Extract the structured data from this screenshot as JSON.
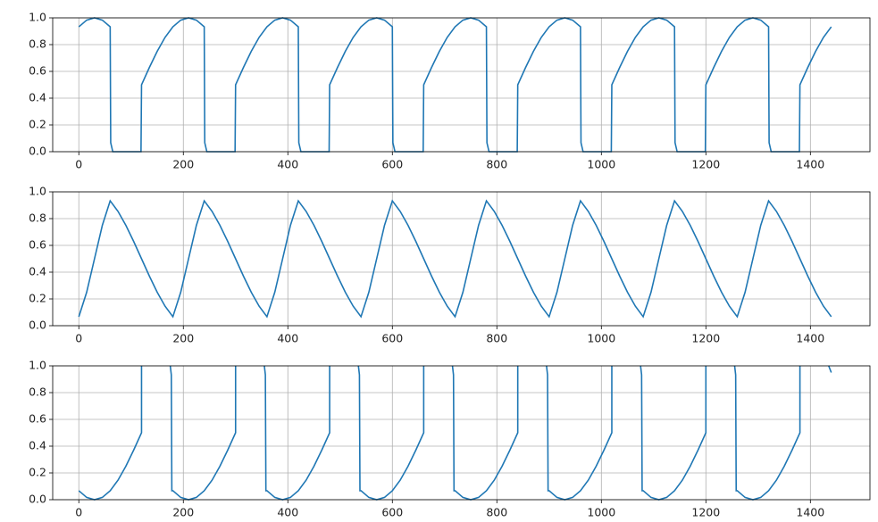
{
  "chart_data": [
    {
      "type": "line",
      "grid": true,
      "xlim": [
        -50,
        1514
      ],
      "ylim": [
        0,
        1
      ],
      "xticks": [
        0,
        200,
        400,
        600,
        800,
        1000,
        1200,
        1400
      ],
      "yticks": [
        {
          "value": 0,
          "label": "0.0"
        },
        {
          "value": 0.2,
          "label": "0.2"
        },
        {
          "value": 0.4,
          "label": "0.4"
        },
        {
          "value": 0.6,
          "label": "0.6"
        },
        {
          "value": 0.8,
          "label": "0.8"
        },
        {
          "value": 1,
          "label": "1.0"
        }
      ],
      "x": [
        0,
        15,
        30,
        45,
        60,
        61,
        65,
        119,
        120,
        135,
        150,
        165,
        180,
        195,
        210,
        225,
        240,
        241,
        245,
        299,
        300,
        315,
        330,
        345,
        360,
        375,
        390,
        405,
        420,
        421,
        425,
        479,
        480,
        495,
        510,
        525,
        540,
        555,
        570,
        585,
        600,
        601,
        605,
        659,
        660,
        675,
        690,
        705,
        720,
        735,
        750,
        765,
        780,
        781,
        785,
        839,
        840,
        855,
        870,
        885,
        900,
        915,
        930,
        945,
        960,
        961,
        965,
        1019,
        1020,
        1035,
        1050,
        1065,
        1080,
        1095,
        1110,
        1125,
        1140,
        1141,
        1145,
        1199,
        1200,
        1215,
        1230,
        1245,
        1260,
        1275,
        1290,
        1305,
        1320,
        1321,
        1325,
        1379,
        1380,
        1395,
        1410,
        1425,
        1440
      ],
      "series": [
        {
          "color": "#1f77b4",
          "values": [
            0.933,
            0.983,
            1,
            0.983,
            0.933,
            0.067,
            0,
            0,
            0.5,
            0.629,
            0.75,
            0.854,
            0.933,
            0.983,
            1,
            0.983,
            0.933,
            0.067,
            0,
            0,
            0.5,
            0.629,
            0.75,
            0.854,
            0.933,
            0.983,
            1,
            0.983,
            0.933,
            0.067,
            0,
            0,
            0.5,
            0.629,
            0.75,
            0.854,
            0.933,
            0.983,
            1,
            0.983,
            0.933,
            0.067,
            0,
            0,
            0.5,
            0.629,
            0.75,
            0.854,
            0.933,
            0.983,
            1,
            0.983,
            0.933,
            0.067,
            0,
            0,
            0.5,
            0.629,
            0.75,
            0.854,
            0.933,
            0.983,
            1,
            0.983,
            0.933,
            0.067,
            0,
            0,
            0.5,
            0.629,
            0.75,
            0.854,
            0.933,
            0.983,
            1,
            0.983,
            0.933,
            0.067,
            0,
            0,
            0.5,
            0.629,
            0.75,
            0.854,
            0.933,
            0.983,
            1,
            0.983,
            0.933,
            0.067,
            0,
            0,
            0.5,
            0.629,
            0.75,
            0.854,
            0.933
          ]
        }
      ]
    },
    {
      "type": "line",
      "grid": true,
      "xlim": [
        -50,
        1514
      ],
      "ylim": [
        0,
        1
      ],
      "xticks": [
        0,
        200,
        400,
        600,
        800,
        1000,
        1200,
        1400
      ],
      "yticks": [
        {
          "value": 0,
          "label": "0.0"
        },
        {
          "value": 0.2,
          "label": "0.2"
        },
        {
          "value": 0.4,
          "label": "0.4"
        },
        {
          "value": 0.6,
          "label": "0.6"
        },
        {
          "value": 0.8,
          "label": "0.8"
        },
        {
          "value": 1,
          "label": "1.0"
        }
      ],
      "x": [
        0,
        15,
        30,
        45,
        60,
        75,
        90,
        105,
        120,
        135,
        150,
        165,
        180,
        195,
        210,
        225,
        240,
        255,
        270,
        285,
        300,
        315,
        330,
        345,
        360,
        375,
        390,
        405,
        420,
        435,
        450,
        465,
        480,
        495,
        510,
        525,
        540,
        555,
        570,
        585,
        600,
        615,
        630,
        645,
        660,
        675,
        690,
        705,
        720,
        735,
        750,
        765,
        780,
        795,
        810,
        825,
        840,
        855,
        870,
        885,
        900,
        915,
        930,
        945,
        960,
        975,
        990,
        1005,
        1020,
        1035,
        1050,
        1065,
        1080,
        1095,
        1110,
        1125,
        1140,
        1155,
        1170,
        1185,
        1200,
        1215,
        1230,
        1245,
        1260,
        1275,
        1290,
        1305,
        1320,
        1335,
        1350,
        1365,
        1380,
        1395,
        1410,
        1425,
        1440
      ],
      "series": [
        {
          "color": "#1f77b4",
          "values": [
            0.067,
            0.25,
            0.5,
            0.75,
            0.933,
            0.854,
            0.75,
            0.629,
            0.5,
            0.371,
            0.25,
            0.146,
            0.067,
            0.25,
            0.5,
            0.75,
            0.933,
            0.854,
            0.75,
            0.629,
            0.5,
            0.371,
            0.25,
            0.146,
            0.067,
            0.25,
            0.5,
            0.75,
            0.933,
            0.854,
            0.75,
            0.629,
            0.5,
            0.371,
            0.25,
            0.146,
            0.067,
            0.25,
            0.5,
            0.75,
            0.933,
            0.854,
            0.75,
            0.629,
            0.5,
            0.371,
            0.25,
            0.146,
            0.067,
            0.25,
            0.5,
            0.75,
            0.933,
            0.854,
            0.75,
            0.629,
            0.5,
            0.371,
            0.25,
            0.146,
            0.067,
            0.25,
            0.5,
            0.75,
            0.933,
            0.854,
            0.75,
            0.629,
            0.5,
            0.371,
            0.25,
            0.146,
            0.067,
            0.25,
            0.5,
            0.75,
            0.933,
            0.854,
            0.75,
            0.629,
            0.5,
            0.371,
            0.25,
            0.146,
            0.067,
            0.25,
            0.5,
            0.75,
            0.933,
            0.854,
            0.75,
            0.629,
            0.5,
            0.371,
            0.25,
            0.146,
            0.067
          ]
        }
      ]
    },
    {
      "type": "line",
      "grid": true,
      "xlim": [
        -50,
        1514
      ],
      "ylim": [
        0,
        1
      ],
      "xticks": [
        0,
        200,
        400,
        600,
        800,
        1000,
        1200,
        1400
      ],
      "yticks": [
        {
          "value": 0,
          "label": "0.0"
        },
        {
          "value": 0.2,
          "label": "0.2"
        },
        {
          "value": 0.4,
          "label": "0.4"
        },
        {
          "value": 0.6,
          "label": "0.6"
        },
        {
          "value": 0.8,
          "label": "0.8"
        },
        {
          "value": 1,
          "label": "1.0"
        }
      ],
      "x": [
        0,
        15,
        30,
        45,
        60,
        75,
        90,
        105,
        120,
        120,
        121,
        175,
        177,
        178,
        180,
        195,
        210,
        225,
        240,
        255,
        270,
        285,
        300,
        300,
        301,
        355,
        357,
        358,
        360,
        375,
        390,
        405,
        420,
        435,
        450,
        465,
        480,
        480,
        481,
        535,
        537,
        538,
        540,
        555,
        570,
        585,
        600,
        615,
        630,
        645,
        660,
        660,
        661,
        715,
        717,
        718,
        720,
        735,
        750,
        765,
        780,
        795,
        810,
        825,
        840,
        840,
        841,
        895,
        897,
        898,
        900,
        915,
        930,
        945,
        960,
        975,
        990,
        1005,
        1020,
        1020,
        1021,
        1075,
        1077,
        1078,
        1080,
        1095,
        1110,
        1125,
        1140,
        1155,
        1170,
        1185,
        1200,
        1200,
        1201,
        1255,
        1257,
        1258,
        1260,
        1275,
        1290,
        1305,
        1320,
        1335,
        1350,
        1365,
        1380,
        1380,
        1381,
        1435,
        1440
      ],
      "series": [
        {
          "color": "#1f77b4",
          "values": [
            0.067,
            0.017,
            0,
            0.017,
            0.067,
            0.146,
            0.25,
            0.371,
            0.5,
            1,
            null,
            1,
            0.933,
            0.067,
            0.067,
            0.017,
            0,
            0.017,
            0.067,
            0.146,
            0.25,
            0.371,
            0.5,
            1,
            null,
            1,
            0.933,
            0.067,
            0.067,
            0.017,
            0,
            0.017,
            0.067,
            0.146,
            0.25,
            0.371,
            0.5,
            1,
            null,
            1,
            0.933,
            0.067,
            0.067,
            0.017,
            0,
            0.017,
            0.067,
            0.146,
            0.25,
            0.371,
            0.5,
            1,
            null,
            1,
            0.933,
            0.067,
            0.067,
            0.017,
            0,
            0.017,
            0.067,
            0.146,
            0.25,
            0.371,
            0.5,
            1,
            null,
            1,
            0.933,
            0.067,
            0.067,
            0.017,
            0,
            0.017,
            0.067,
            0.146,
            0.25,
            0.371,
            0.5,
            1,
            null,
            1,
            0.933,
            0.067,
            0.067,
            0.017,
            0,
            0.017,
            0.067,
            0.146,
            0.25,
            0.371,
            0.5,
            1,
            null,
            1,
            0.933,
            0.067,
            0.067,
            0.017,
            0,
            0.017,
            0.067,
            0.146,
            0.25,
            0.371,
            0.5,
            1,
            null,
            1,
            0.95
          ]
        }
      ]
    }
  ]
}
